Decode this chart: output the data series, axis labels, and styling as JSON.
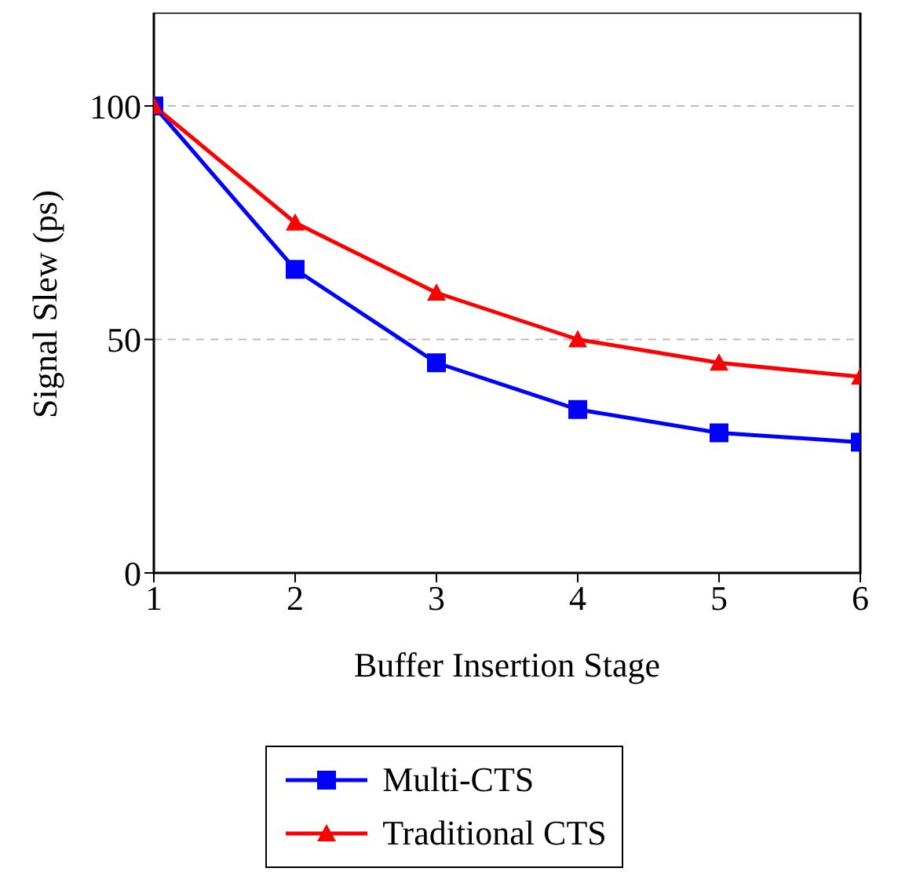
{
  "chart_data": {
    "type": "line",
    "xlabel": "Buffer Insertion Stage",
    "ylabel": "Signal Slew (ps)",
    "x": [
      1,
      2,
      3,
      4,
      5,
      6
    ],
    "xlim": [
      1,
      6
    ],
    "xticks": [
      1,
      2,
      3,
      4,
      5,
      6
    ],
    "ylim": [
      0,
      120
    ],
    "yticks": [
      0,
      50,
      100
    ],
    "grid": "y",
    "legend": "bottom",
    "series": [
      {
        "name": "Multi-CTS",
        "color": "#0000ff",
        "marker": "square",
        "values": [
          100,
          65,
          45,
          35,
          30,
          28
        ]
      },
      {
        "name": "Traditional CTS",
        "color": "#ff0000",
        "marker": "triangle",
        "values": [
          100,
          75,
          60,
          50,
          45,
          42
        ]
      }
    ]
  }
}
